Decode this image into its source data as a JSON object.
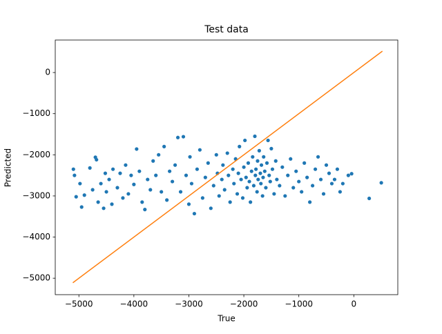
{
  "chart_data": {
    "type": "scatter",
    "title": "Test data",
    "x_label": "True",
    "y_label": "Predicted",
    "color": "#1f77b4",
    "x": [
      -5100,
      -5080,
      -5050,
      -4980,
      -4950,
      -4900,
      -4800,
      -4750,
      -4700,
      -4680,
      -4650,
      -4600,
      -4550,
      -4520,
      -4500,
      -4450,
      -4400,
      -4380,
      -4300,
      -4250,
      -4200,
      -4150,
      -4100,
      -4050,
      -4000,
      -3950,
      -3900,
      -3850,
      -3800,
      -3750,
      -3700,
      -3650,
      -3600,
      -3550,
      -3500,
      -3450,
      -3400,
      -3350,
      -3300,
      -3250,
      -3200,
      -3150,
      -3100,
      -3050,
      -3000,
      -2980,
      -2950,
      -2900,
      -2850,
      -2800,
      -2750,
      -2700,
      -2650,
      -2600,
      -2550,
      -2500,
      -2480,
      -2450,
      -2400,
      -2380,
      -2350,
      -2300,
      -2280,
      -2250,
      -2200,
      -2180,
      -2150,
      -2120,
      -2100,
      -2080,
      -2050,
      -2020,
      -2000,
      -1980,
      -1960,
      -1940,
      -1920,
      -1900,
      -1880,
      -1860,
      -1840,
      -1820,
      -1800,
      -1790,
      -1780,
      -1760,
      -1750,
      -1740,
      -1720,
      -1700,
      -1690,
      -1680,
      -1660,
      -1650,
      -1640,
      -1620,
      -1600,
      -1580,
      -1560,
      -1540,
      -1520,
      -1500,
      -1480,
      -1450,
      -1420,
      -1400,
      -1350,
      -1300,
      -1250,
      -1200,
      -1150,
      -1100,
      -1050,
      -1000,
      -950,
      -900,
      -850,
      -800,
      -750,
      -700,
      -650,
      -600,
      -550,
      -500,
      -450,
      -400,
      -350,
      -300,
      -250,
      -200,
      -100,
      -40,
      280,
      500
    ],
    "values": [
      -2350,
      -2500,
      -3020,
      -2700,
      -3270,
      -2980,
      -2320,
      -2850,
      -2060,
      -2120,
      -3150,
      -2700,
      -3300,
      -2450,
      -2900,
      -2600,
      -3200,
      -2350,
      -2800,
      -2450,
      -3050,
      -2250,
      -2950,
      -2500,
      -2720,
      -1860,
      -2400,
      -3150,
      -3330,
      -2600,
      -2850,
      -2150,
      -2500,
      -2000,
      -2900,
      -1800,
      -3100,
      -2400,
      -2650,
      -2250,
      -1580,
      -2900,
      -1560,
      -2500,
      -3200,
      -2050,
      -2700,
      -3430,
      -2350,
      -1880,
      -3050,
      -2550,
      -2200,
      -3300,
      -2750,
      -2000,
      -2450,
      -3000,
      -2600,
      -2250,
      -2850,
      -1960,
      -2500,
      -3150,
      -2350,
      -2700,
      -2100,
      -2950,
      -2450,
      -1800,
      -2600,
      -3050,
      -2300,
      -1650,
      -2550,
      -2800,
      -2200,
      -2650,
      -3150,
      -2400,
      -2050,
      -2750,
      -1550,
      -2500,
      -2350,
      -2900,
      -2150,
      -2600,
      -1900,
      -2450,
      -2700,
      -2250,
      -3000,
      -2550,
      -2050,
      -2400,
      -2800,
      -2200,
      -1650,
      -2500,
      -2650,
      -1850,
      -2350,
      -2950,
      -2150,
      -2600,
      -2750,
      -2300,
      -3000,
      -2500,
      -2100,
      -2800,
      -2400,
      -2650,
      -2900,
      -2200,
      -2550,
      -3150,
      -2750,
      -2350,
      -2050,
      -2600,
      -2950,
      -2250,
      -2450,
      -2700,
      -2600,
      -2350,
      -2900,
      -2700,
      -2500,
      -2460,
      -3060,
      -2680
    ],
    "line": {
      "x": [
        -5110,
        520
      ],
      "values": [
        -5110,
        520
      ],
      "color": "#ff7f0e"
    },
    "xlim": [
      -5430,
      800
    ],
    "ylim": [
      -5400,
      790
    ],
    "xticks": [
      {
        "value": -5000,
        "label": "−5000"
      },
      {
        "value": -4000,
        "label": "−4000"
      },
      {
        "value": -3000,
        "label": "−3000"
      },
      {
        "value": -2000,
        "label": "−2000"
      },
      {
        "value": -1000,
        "label": "−1000"
      },
      0
    ],
    "yticks": [
      0,
      {
        "value": -1000,
        "label": "−1000"
      },
      {
        "value": -2000,
        "label": "−2000"
      },
      {
        "value": -3000,
        "label": "−3000"
      },
      {
        "value": -4000,
        "label": "−4000"
      },
      {
        "value": -5000,
        "label": "−5000"
      }
    ]
  }
}
